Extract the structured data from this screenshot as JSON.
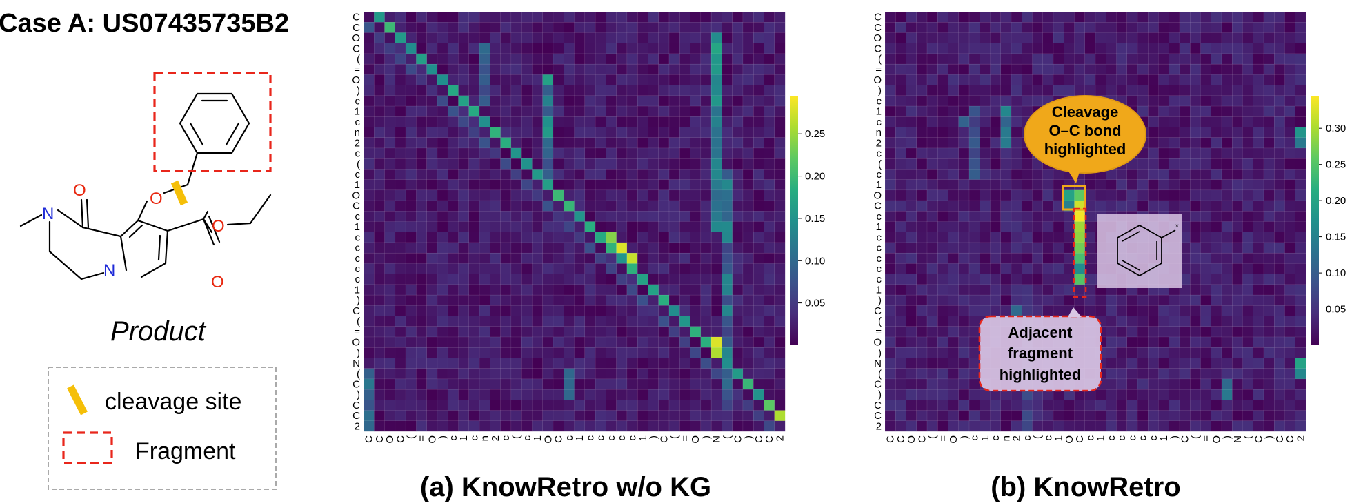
{
  "case_title": "Case A: US07435735B2",
  "product_label": "Product",
  "legend": {
    "cleavage": "cleavage site",
    "fragment": "Fragment"
  },
  "molecule_atoms": {
    "ketone_o": "O",
    "ether_o": "O",
    "ring_n1": "N",
    "ring_n2": "N",
    "ester_o1": "O",
    "ester_o2": "O",
    "star": "*"
  },
  "colors": {
    "cleavage_mark": "#f5bf08",
    "fragment_box": "#e8261b",
    "legend_border": "#aaaaaa",
    "callout_orange": "#f0a81a",
    "callout_pink": "#c9a6d2",
    "viridis_low": "#440154",
    "viridis_high": "#fde725"
  },
  "callouts": {
    "cleavage": [
      "Cleavage",
      "O–C bond",
      "highlighted"
    ],
    "fragment": [
      "Adjacent",
      "fragment",
      "highlighted"
    ]
  },
  "chart_data": [
    {
      "type": "heatmap",
      "title": "(a) KnowRetro w/o KG",
      "x_tokens": [
        "C",
        "C",
        "O",
        "C",
        "(",
        "=",
        "O",
        ")",
        "c",
        "1",
        "c",
        "n",
        "2",
        "c",
        "(",
        "c",
        "1",
        "O",
        "C",
        "c",
        "1",
        "c",
        "c",
        "c",
        "c",
        "c",
        "1",
        ")",
        "C",
        "(",
        "=",
        "O",
        ")",
        "N",
        "(",
        "C",
        ")",
        "C",
        "C",
        "2"
      ],
      "y_tokens": [
        "C",
        "C",
        "O",
        "C",
        "(",
        "=",
        "O",
        ")",
        "c",
        "1",
        "c",
        "n",
        "2",
        "c",
        "(",
        "c",
        "1",
        "O",
        "C",
        "c",
        "1",
        "c",
        "c",
        "c",
        "c",
        "c",
        "1",
        ")",
        "C",
        "(",
        "=",
        "O",
        ")",
        "N",
        "(",
        "C",
        ")",
        "C",
        "C",
        "2"
      ],
      "colorbar": {
        "vmin": 0.0,
        "vmax": 0.295,
        "ticks": [
          "0.05",
          "0.10",
          "0.15",
          "0.20",
          "0.25"
        ]
      }
    },
    {
      "type": "heatmap",
      "title": "(b) KnowRetro",
      "x_tokens": [
        "C",
        "C",
        "O",
        "C",
        "(",
        "=",
        "O",
        ")",
        "c",
        "1",
        "c",
        "n",
        "2",
        "c",
        "(",
        "c",
        "1",
        "O",
        "C",
        "c",
        "1",
        "c",
        "c",
        "c",
        "c",
        "c",
        "1",
        ")",
        "C",
        "(",
        "=",
        "O",
        ")",
        "N",
        "(",
        "C",
        ")",
        "C",
        "C",
        "2"
      ],
      "y_tokens": [
        "C",
        "C",
        "O",
        "C",
        "(",
        "=",
        "O",
        ")",
        "c",
        "1",
        "c",
        "n",
        "2",
        "c",
        "(",
        "c",
        "1",
        "O",
        "C",
        "c",
        "1",
        "c",
        "c",
        "c",
        "c",
        "c",
        "1",
        ")",
        "C",
        "(",
        "=",
        "O",
        ")",
        "N",
        "(",
        "C",
        ")",
        "C",
        "C",
        "2"
      ],
      "colorbar": {
        "vmin": 0.0,
        "vmax": 0.345,
        "ticks": [
          "0.05",
          "0.10",
          "0.15",
          "0.20",
          "0.25",
          "0.30"
        ]
      }
    }
  ]
}
